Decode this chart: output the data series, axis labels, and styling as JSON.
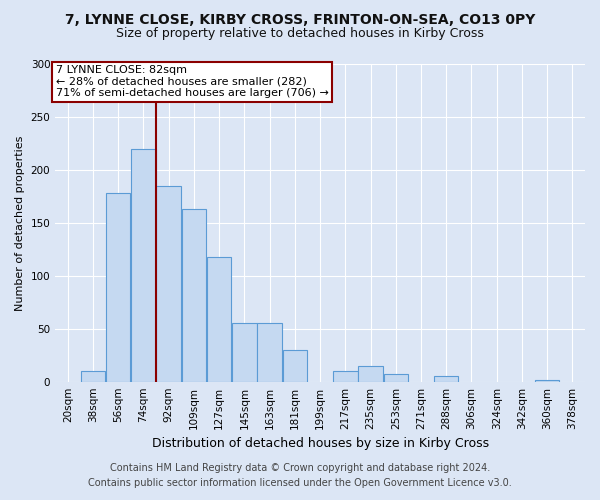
{
  "title": "7, LYNNE CLOSE, KIRBY CROSS, FRINTON-ON-SEA, CO13 0PY",
  "subtitle": "Size of property relative to detached houses in Kirby Cross",
  "xlabel": "Distribution of detached houses by size in Kirby Cross",
  "ylabel": "Number of detached properties",
  "footer_line1": "Contains HM Land Registry data © Crown copyright and database right 2024.",
  "footer_line2": "Contains public sector information licensed under the Open Government Licence v3.0.",
  "annotation_line1": "7 LYNNE CLOSE: 82sqm",
  "annotation_line2": "← 28% of detached houses are smaller (282)",
  "annotation_line3": "71% of semi-detached houses are larger (706) →",
  "bar_edge_color": "#5b9bd5",
  "bar_face_color": "#c5d9f1",
  "vline_color": "#8b0000",
  "vline_bin_index": 4,
  "categories": [
    "20sqm",
    "38sqm",
    "56sqm",
    "74sqm",
    "92sqm",
    "109sqm",
    "127sqm",
    "145sqm",
    "163sqm",
    "181sqm",
    "199sqm",
    "217sqm",
    "235sqm",
    "253sqm",
    "271sqm",
    "288sqm",
    "306sqm",
    "324sqm",
    "342sqm",
    "360sqm",
    "378sqm"
  ],
  "values": [
    0,
    10,
    178,
    220,
    185,
    163,
    118,
    55,
    55,
    30,
    0,
    10,
    15,
    7,
    0,
    5,
    0,
    0,
    0,
    2,
    0
  ],
  "ylim": [
    0,
    300
  ],
  "yticks": [
    0,
    50,
    100,
    150,
    200,
    250,
    300
  ],
  "background_color": "#dce6f5",
  "grid_color": "#ffffff",
  "annotation_box_color": "#ffffff",
  "annotation_box_edgecolor": "#8b0000",
  "title_fontsize": 10,
  "subtitle_fontsize": 9,
  "ylabel_fontsize": 8,
  "xlabel_fontsize": 9,
  "tick_fontsize": 7.5,
  "footer_fontsize": 7,
  "annotation_fontsize": 8
}
